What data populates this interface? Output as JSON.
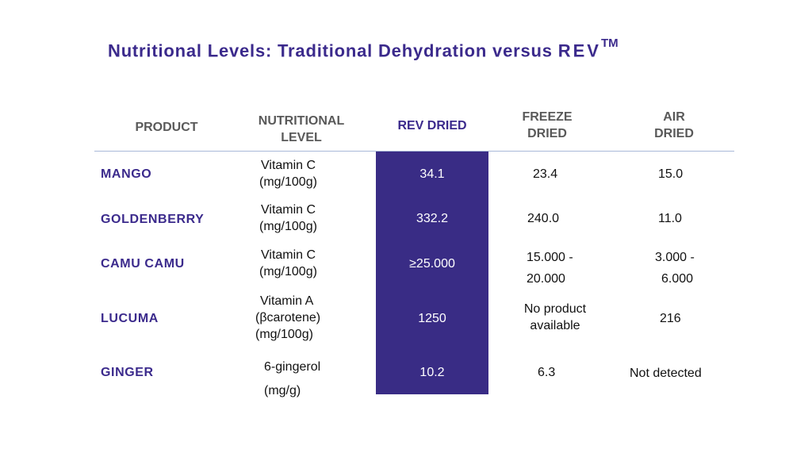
{
  "title": {
    "text": "Nutritional Levels: Traditional Dehydration versus",
    "brand": "REV",
    "trademark": "TM"
  },
  "headers": {
    "product": "PRODUCT",
    "nutritional_1": "NUTRITIONAL",
    "nutritional_2": "LEVEL",
    "rev": "REV DRIED",
    "freeze_1": "FREEZE",
    "freeze_2": "DRIED",
    "air_1": "AIR",
    "air_2": "DRIED"
  },
  "rows": [
    {
      "product": "MANGO",
      "level_lines": [
        "Vitamin C",
        "(mg/100g)"
      ],
      "rev": "34.1",
      "freeze_lines": [
        "23.4"
      ],
      "air_lines": [
        "15.0"
      ]
    },
    {
      "product": "GOLDENBERRY",
      "level_lines": [
        "Vitamin C",
        "(mg/100g)"
      ],
      "rev": "332.2",
      "freeze_lines": [
        "240.0"
      ],
      "air_lines": [
        "11.0"
      ]
    },
    {
      "product": "CAMU CAMU",
      "level_lines": [
        "Vitamin C",
        "(mg/100g)"
      ],
      "rev": "≥25.000",
      "freeze_lines": [
        "15.000 -",
        "20.000"
      ],
      "air_lines": [
        "3.000 -",
        "6.000"
      ]
    },
    {
      "product": "LUCUMA",
      "level_lines": [
        "Vitamin A",
        "(βcarotene)",
        "(mg/100g)"
      ],
      "rev": "1250",
      "freeze_lines": [
        "No product",
        "available"
      ],
      "air_lines": [
        "216"
      ]
    },
    {
      "product": "GINGER",
      "level_lines": [
        "6-gingerol",
        "(mg/g)"
      ],
      "rev": "10.2",
      "freeze_lines": [
        "6.3"
      ],
      "air_lines": [
        "Not detected"
      ]
    }
  ],
  "colors": {
    "accent": "#3b2a8c",
    "band": "#392c85",
    "header_text": "#595959",
    "rule": "#a9b9d8"
  }
}
